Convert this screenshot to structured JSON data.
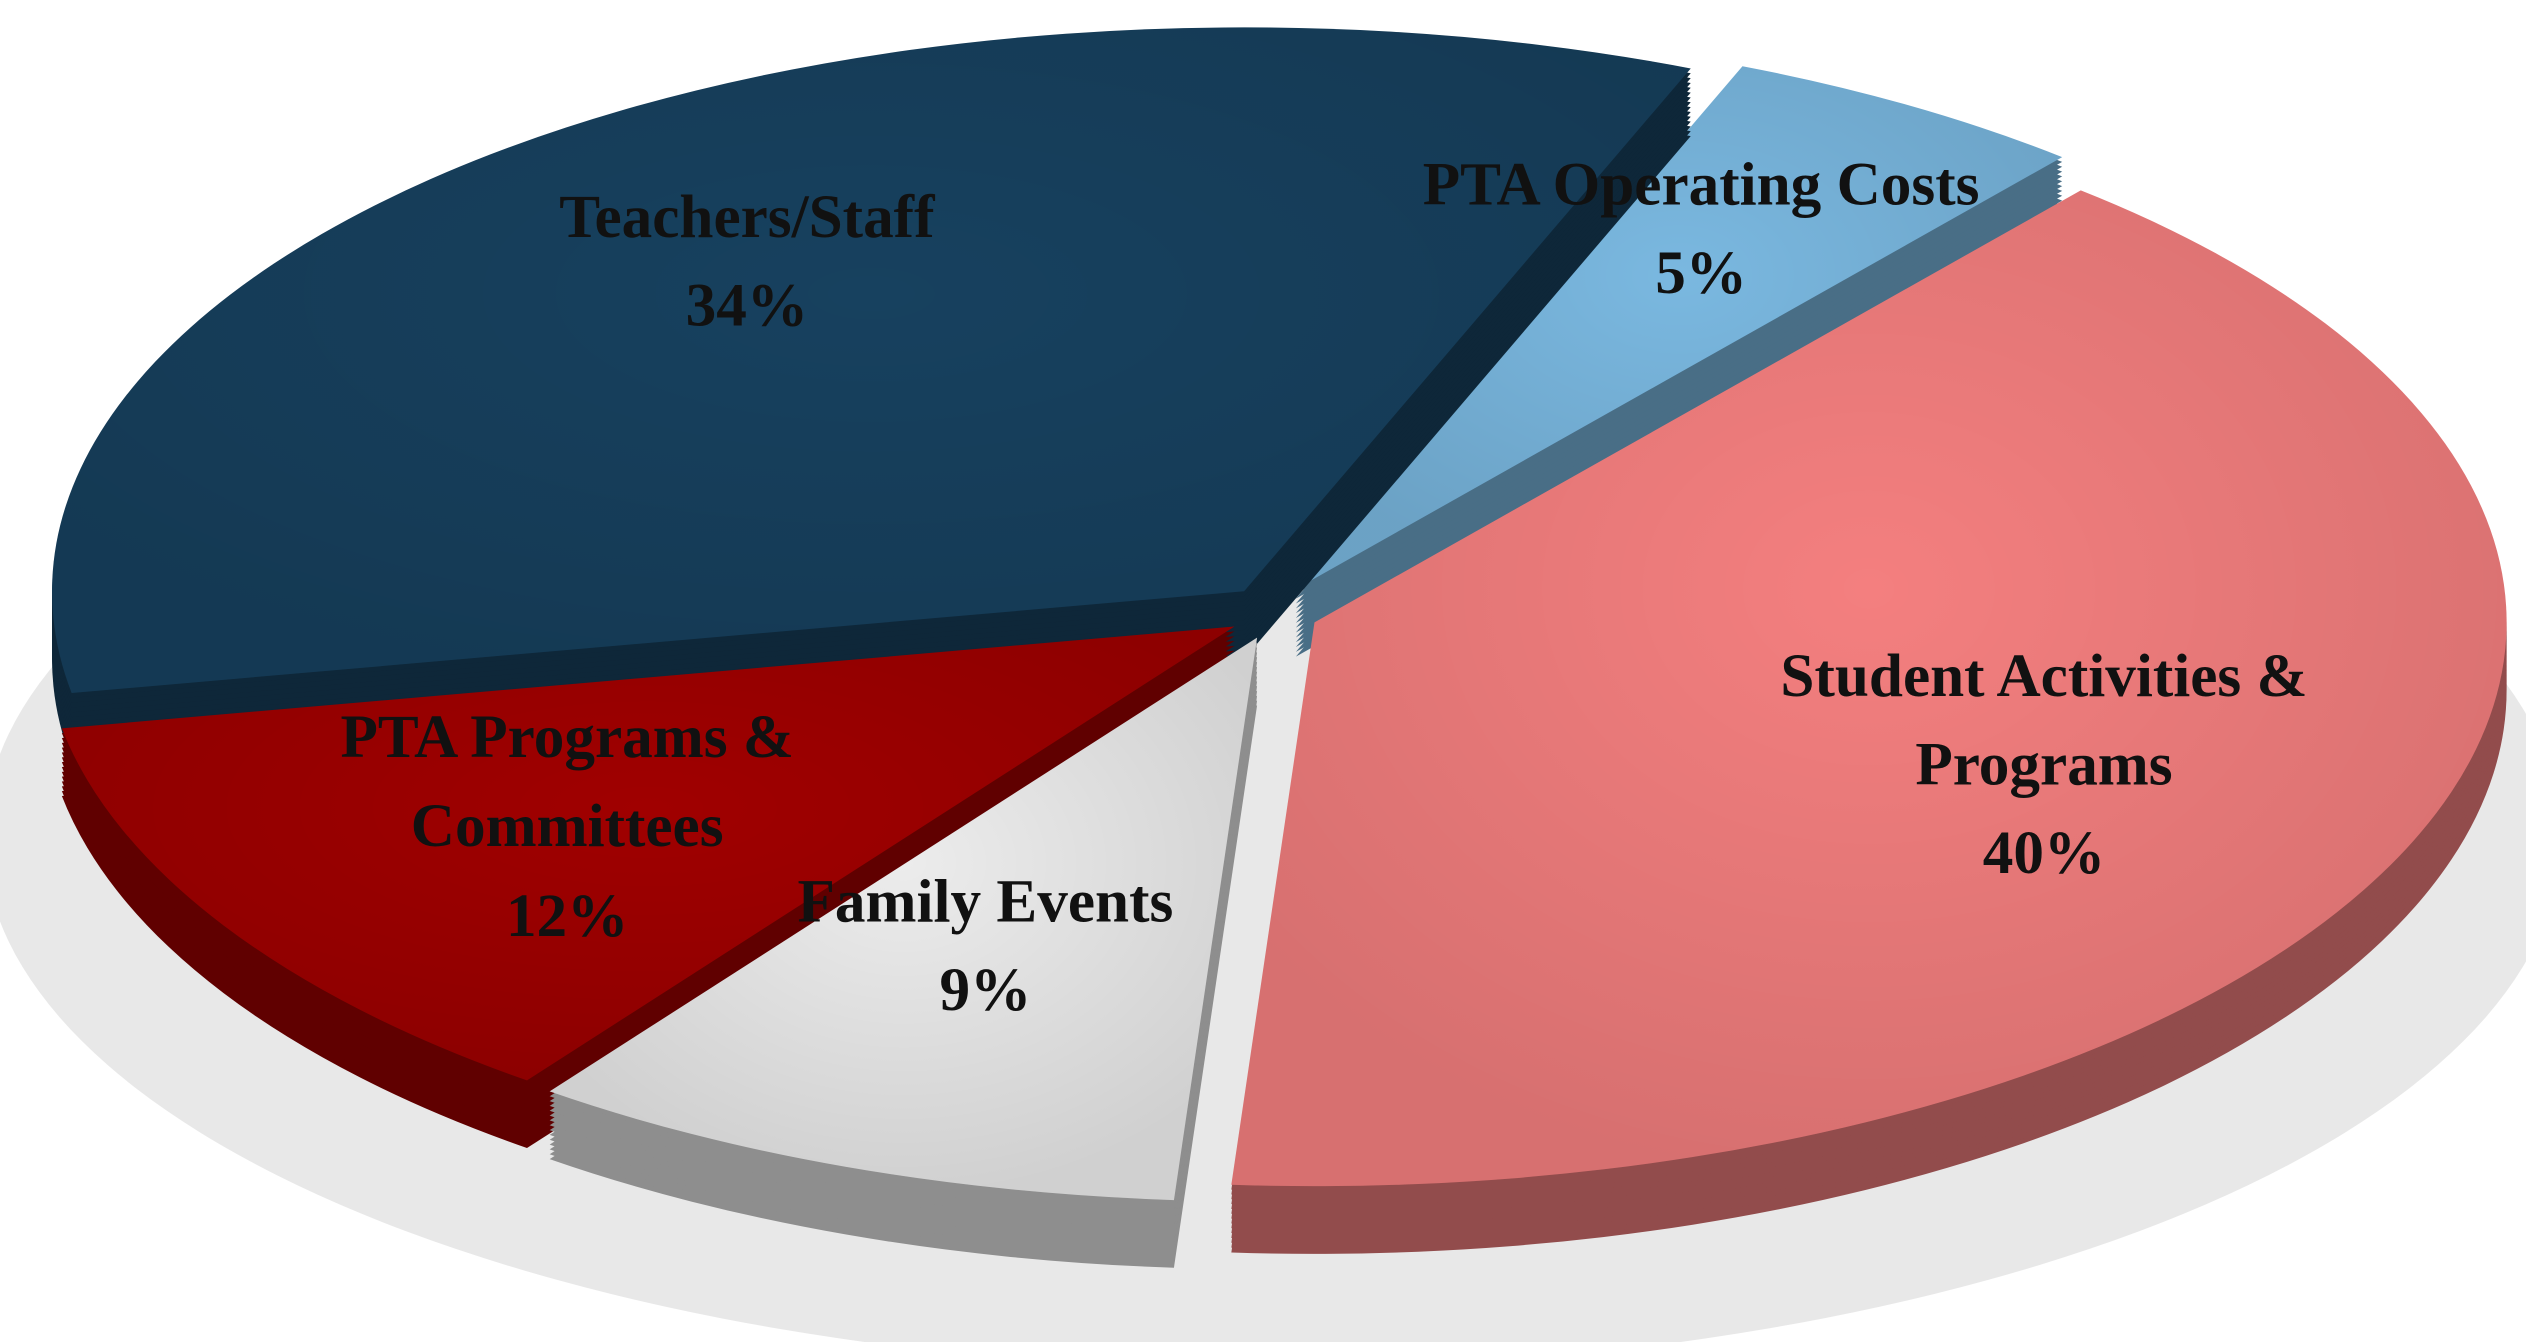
{
  "chart_data": {
    "type": "pie",
    "categories": [
      "Student Activities & Programs",
      "Family Events",
      "PTA Programs & Committees",
      "Teachers/Staff",
      "PTA Operating Costs"
    ],
    "values": [
      40,
      9,
      12,
      34,
      5
    ],
    "value_labels": [
      "40%",
      "9%",
      "12%",
      "34%",
      "5%"
    ],
    "colors": [
      "#f47f7f",
      "#ececec",
      "#a00000",
      "#17415f",
      "#7ab8e0"
    ]
  }
}
